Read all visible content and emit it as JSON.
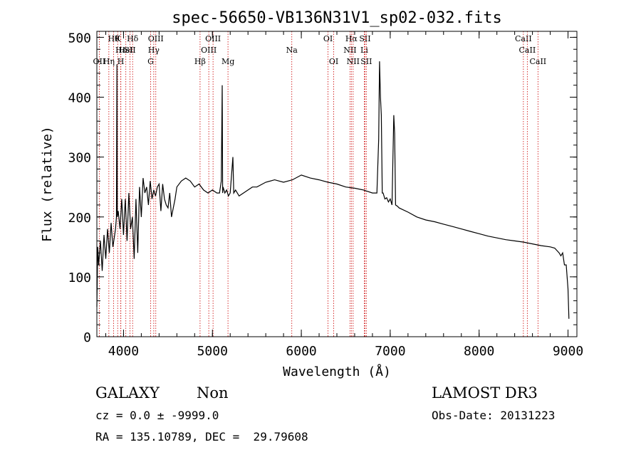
{
  "chart_data": {
    "type": "line",
    "title": "spec-56650-VB136N31V1_sp02-032.fits",
    "xlabel": "Wavelength (Å)",
    "ylabel": "Flux (relative)",
    "xlim": [
      3700,
      9100
    ],
    "ylim": [
      0,
      510
    ],
    "x_ticks": [
      4000,
      5000,
      6000,
      7000,
      8000,
      9000
    ],
    "y_ticks": [
      0,
      100,
      200,
      300,
      400,
      500
    ],
    "grid": false,
    "series": [
      {
        "x": [
          3700,
          3710,
          3720,
          3740,
          3760,
          3780,
          3800,
          3820,
          3840,
          3860,
          3880,
          3900,
          3910,
          3920,
          3926,
          3930,
          3940,
          3960,
          3980,
          4000,
          4020,
          4040,
          4060,
          4080,
          4100,
          4120,
          4140,
          4160,
          4180,
          4200,
          4220,
          4240,
          4260,
          4280,
          4300,
          4320,
          4340,
          4360,
          4380,
          4400,
          4420,
          4440,
          4460,
          4480,
          4500,
          4520,
          4540,
          4560,
          4580,
          4600,
          4650,
          4700,
          4750,
          4800,
          4850,
          4900,
          4950,
          5000,
          5050,
          5080,
          5100,
          5110,
          5115,
          5120,
          5140,
          5160,
          5180,
          5200,
          5230,
          5240,
          5260,
          5300,
          5350,
          5400,
          5450,
          5500,
          5600,
          5700,
          5800,
          5900,
          6000,
          6100,
          6200,
          6300,
          6400,
          6500,
          6600,
          6700,
          6800,
          6850,
          6870,
          6880,
          6890,
          6900,
          6910,
          6920,
          6940,
          6960,
          6980,
          7000,
          7020,
          7040,
          7050,
          7060,
          7080,
          7100,
          7200,
          7300,
          7400,
          7500,
          7600,
          7700,
          7800,
          7900,
          8000,
          8100,
          8200,
          8300,
          8400,
          8500,
          8600,
          8700,
          8800,
          8850,
          8900,
          8920,
          8940,
          8960,
          8980,
          9000,
          9010
        ],
        "y": [
          50,
          150,
          120,
          160,
          110,
          170,
          130,
          180,
          140,
          190,
          150,
          170,
          180,
          200,
          455,
          200,
          210,
          180,
          230,
          170,
          230,
          160,
          240,
          180,
          200,
          130,
          230,
          140,
          250,
          200,
          265,
          240,
          250,
          220,
          260,
          230,
          245,
          235,
          250,
          255,
          210,
          255,
          230,
          220,
          215,
          240,
          200,
          215,
          230,
          250,
          260,
          265,
          260,
          250,
          255,
          245,
          240,
          245,
          240,
          240,
          260,
          420,
          240,
          250,
          240,
          245,
          235,
          240,
          300,
          240,
          245,
          235,
          240,
          245,
          250,
          250,
          258,
          262,
          258,
          262,
          270,
          265,
          262,
          258,
          255,
          250,
          248,
          245,
          240,
          240,
          330,
          460,
          400,
          370,
          240,
          240,
          230,
          232,
          225,
          230,
          220,
          370,
          340,
          220,
          218,
          215,
          208,
          200,
          195,
          192,
          188,
          184,
          180,
          176,
          172,
          168,
          165,
          162,
          160,
          158,
          155,
          152,
          150,
          148,
          140,
          135,
          140,
          120,
          120,
          80,
          30
        ]
      }
    ],
    "lines": [
      {
        "wavelength": 3727,
        "labels": [
          "OII"
        ],
        "row": [
          3
        ]
      },
      {
        "wavelength": 3934,
        "labels": [
          "K"
        ],
        "row": [
          1
        ]
      },
      {
        "wavelength": 3969,
        "labels": [
          "H"
        ],
        "row": [
          3
        ]
      },
      {
        "wavelength": 3889,
        "labels": [
          "Hθ"
        ],
        "row": [
          1
        ]
      },
      {
        "wavelength": 3970,
        "labels": [
          "Hε"
        ],
        "row": [
          2
        ]
      },
      {
        "wavelength": 3835,
        "labels": [
          "Hη"
        ],
        "row": [
          3
        ]
      },
      {
        "wavelength": 4026,
        "labels": [
          "HeI"
        ],
        "row": [
          2
        ]
      },
      {
        "wavelength": 4102,
        "labels": [
          "Hδ"
        ],
        "row": [
          1
        ]
      },
      {
        "wavelength": 4072,
        "labels": [
          "SII"
        ],
        "row": [
          2
        ]
      },
      {
        "wavelength": 4305,
        "labels": [
          "G"
        ],
        "row": [
          3
        ]
      },
      {
        "wavelength": 4340,
        "labels": [
          "Hγ"
        ],
        "row": [
          2
        ]
      },
      {
        "wavelength": 4363,
        "labels": [
          "OIII"
        ],
        "row": [
          1
        ]
      },
      {
        "wavelength": 4861,
        "labels": [
          "Hβ"
        ],
        "row": [
          3
        ]
      },
      {
        "wavelength": 4959,
        "labels": [
          "OIII"
        ],
        "row": [
          2
        ]
      },
      {
        "wavelength": 5007,
        "labels": [
          "OIII"
        ],
        "row": [
          1
        ]
      },
      {
        "wavelength": 5175,
        "labels": [
          "Mg"
        ],
        "row": [
          3
        ]
      },
      {
        "wavelength": 5893,
        "labels": [
          "Na"
        ],
        "row": [
          2
        ]
      },
      {
        "wavelength": 6300,
        "labels": [
          "OI"
        ],
        "row": [
          1
        ]
      },
      {
        "wavelength": 6364,
        "labels": [
          "OI"
        ],
        "row": [
          3
        ]
      },
      {
        "wavelength": 6548,
        "labels": [
          "NII"
        ],
        "row": [
          2
        ]
      },
      {
        "wavelength": 6563,
        "labels": [
          "Hα"
        ],
        "row": [
          1
        ]
      },
      {
        "wavelength": 6583,
        "labels": [
          "NII"
        ],
        "row": [
          3
        ]
      },
      {
        "wavelength": 6708,
        "labels": [
          "Li"
        ],
        "row": [
          2
        ]
      },
      {
        "wavelength": 6716,
        "labels": [
          "SII"
        ],
        "row": [
          1
        ]
      },
      {
        "wavelength": 6731,
        "labels": [
          "SII"
        ],
        "row": [
          3
        ]
      },
      {
        "wavelength": 8498,
        "labels": [
          "CaII"
        ],
        "row": [
          1
        ]
      },
      {
        "wavelength": 8542,
        "labels": [
          "CaII"
        ],
        "row": [
          2
        ]
      },
      {
        "wavelength": 8662,
        "labels": [
          "CaII"
        ],
        "row": [
          3
        ]
      }
    ]
  },
  "info": {
    "object_class": "GALAXY",
    "subclass": "Non",
    "survey": "LAMOST DR3",
    "cz_line": "cz = 0.0 ± -9999.0",
    "obs_date_line": "Obs-Date: 20131223",
    "coords_line": "RA = 135.10789, DEC =  29.79608"
  },
  "colors": {
    "spectrum": "#000000",
    "line_markers": "#cc0000"
  }
}
